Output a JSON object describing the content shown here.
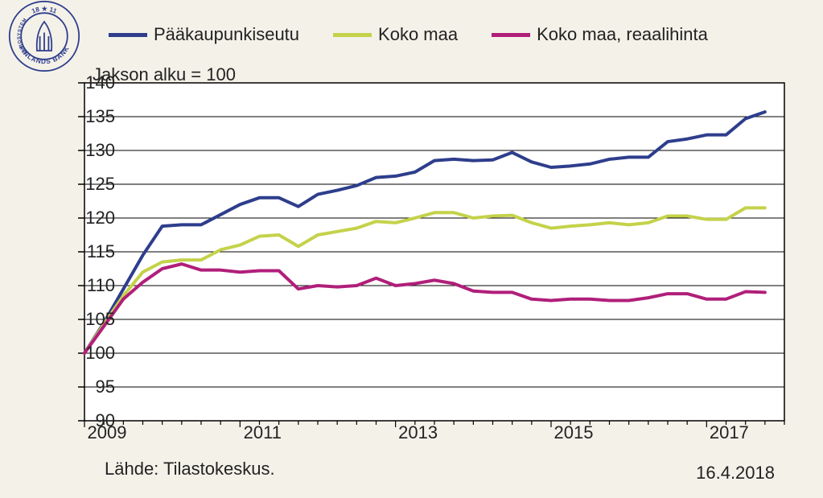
{
  "background_color": "#f4f1e9",
  "legend": {
    "items": [
      {
        "label": "Pääkaupunkiseutu",
        "color": "#2e3e8c"
      },
      {
        "label": "Koko maa",
        "color": "#c4d24a"
      },
      {
        "label": "Koko maa, reaalihinta",
        "color": "#b01f7a"
      }
    ],
    "swatch_width": 48,
    "swatch_height": 5,
    "fontsize": 22
  },
  "subtitle": "Jakson alku = 100",
  "source": "Lähde: Tilastokeskus.",
  "date": "16.4.2018",
  "chart": {
    "type": "line",
    "plot_bg": "#ffffff",
    "frame_color": "#000000",
    "grid_color": "#000000",
    "grid_linewidth": 1,
    "line_width": 4,
    "x": {
      "min": 2009.0,
      "max": 2018.0,
      "ticks": [
        2009,
        2011,
        2013,
        2015,
        2017
      ],
      "tick_labels": [
        "2009",
        "2011",
        "2013",
        "2015",
        "2017"
      ],
      "minor_ticks_per_major": 4,
      "tick_len": 8,
      "minor_tick_len": 5
    },
    "y": {
      "min": 90,
      "max": 140,
      "step": 5,
      "ticks": [
        90,
        95,
        100,
        105,
        110,
        115,
        120,
        125,
        130,
        135,
        140
      ],
      "tick_len": 8
    },
    "series": [
      {
        "name": "Pääkaupunkiseutu",
        "color": "#2e3e8c",
        "x": [
          2009.0,
          2009.25,
          2009.5,
          2009.75,
          2010.0,
          2010.25,
          2010.5,
          2010.75,
          2011.0,
          2011.25,
          2011.5,
          2011.75,
          2012.0,
          2012.25,
          2012.5,
          2012.75,
          2013.0,
          2013.25,
          2013.5,
          2013.75,
          2014.0,
          2014.25,
          2014.5,
          2014.75,
          2015.0,
          2015.25,
          2015.5,
          2015.75,
          2016.0,
          2016.25,
          2016.5,
          2016.75,
          2017.0,
          2017.25,
          2017.5,
          2017.75
        ],
        "y": [
          100.0,
          104.5,
          109.5,
          114.5,
          118.8,
          119.0,
          119.0,
          120.5,
          122.0,
          123.0,
          123.0,
          121.7,
          123.5,
          124.1,
          124.8,
          126.0,
          126.2,
          126.8,
          128.5,
          128.7,
          128.5,
          128.6,
          129.7,
          128.3,
          127.5,
          127.7,
          128.0,
          128.7,
          129.0,
          129.0,
          131.3,
          131.7,
          132.3,
          132.3,
          134.7,
          135.7
        ]
      },
      {
        "name": "Koko maa",
        "color": "#c4d24a",
        "x": [
          2009.0,
          2009.25,
          2009.5,
          2009.75,
          2010.0,
          2010.25,
          2010.5,
          2010.75,
          2011.0,
          2011.25,
          2011.5,
          2011.75,
          2012.0,
          2012.25,
          2012.5,
          2012.75,
          2013.0,
          2013.25,
          2013.5,
          2013.75,
          2014.0,
          2014.25,
          2014.5,
          2014.75,
          2015.0,
          2015.25,
          2015.5,
          2015.75,
          2016.0,
          2016.25,
          2016.5,
          2016.75,
          2017.0,
          2017.25,
          2017.5,
          2017.75
        ],
        "y": [
          100.0,
          104.3,
          108.5,
          112.0,
          113.5,
          113.8,
          113.8,
          115.3,
          116.0,
          117.3,
          117.5,
          115.8,
          117.5,
          118.0,
          118.5,
          119.5,
          119.3,
          120.0,
          120.8,
          120.8,
          120.0,
          120.3,
          120.4,
          119.3,
          118.5,
          118.8,
          119.0,
          119.3,
          119.0,
          119.3,
          120.3,
          120.3,
          119.8,
          119.8,
          121.5,
          121.5
        ]
      },
      {
        "name": "Koko maa, reaalihinta",
        "color": "#b01f7a",
        "x": [
          2009.0,
          2009.25,
          2009.5,
          2009.75,
          2010.0,
          2010.25,
          2010.5,
          2010.75,
          2011.0,
          2011.25,
          2011.5,
          2011.75,
          2012.0,
          2012.25,
          2012.5,
          2012.75,
          2013.0,
          2013.25,
          2013.5,
          2013.75,
          2014.0,
          2014.25,
          2014.5,
          2014.75,
          2015.0,
          2015.25,
          2015.5,
          2015.75,
          2016.0,
          2016.25,
          2016.5,
          2016.75,
          2017.0,
          2017.25,
          2017.5,
          2017.75
        ],
        "y": [
          100.0,
          104.0,
          108.0,
          110.5,
          112.5,
          113.2,
          112.3,
          112.3,
          112.0,
          112.2,
          112.2,
          109.5,
          110.0,
          109.8,
          110.0,
          111.1,
          110.0,
          110.3,
          110.8,
          110.3,
          109.2,
          109.0,
          109.0,
          108.0,
          107.8,
          108.0,
          108.0,
          107.8,
          107.8,
          108.2,
          108.8,
          108.8,
          108.0,
          108.0,
          109.1,
          109.0
        ]
      }
    ]
  },
  "logo": {
    "outer_color": "#2e3e8c",
    "text_top": "18 ★ 11",
    "text_bottom_arc": "FINLANDS BANK",
    "text_side": "EUROSYSTEM"
  }
}
